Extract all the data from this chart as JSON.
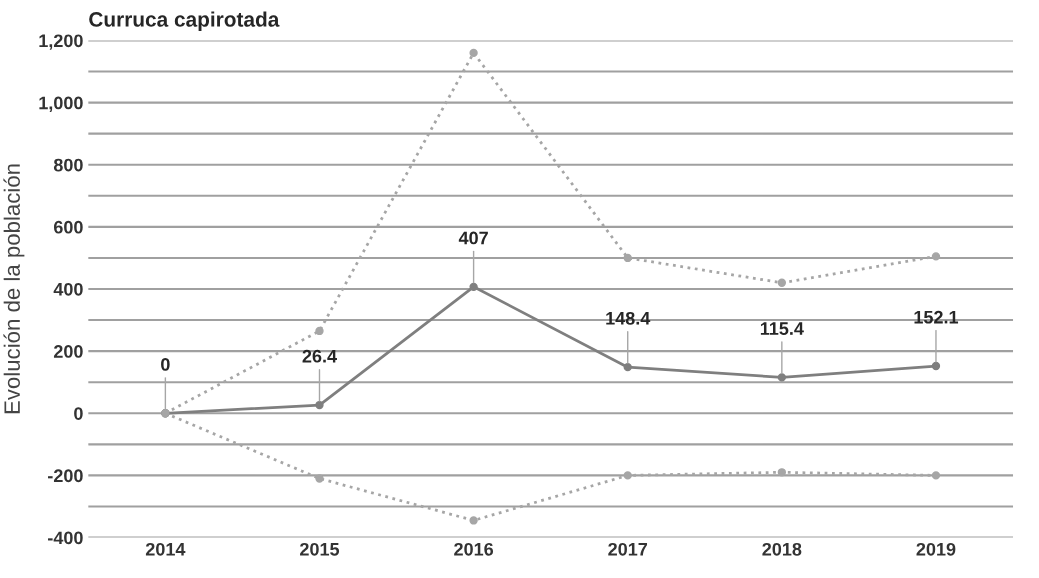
{
  "chart_data": {
    "type": "line",
    "title": "Curruca capirotada",
    "ylabel": "Evolución de la población",
    "categories": [
      "2014",
      "2015",
      "2016",
      "2017",
      "2018",
      "2019"
    ],
    "series": [
      {
        "color": "#a6a6a6",
        "values": [
          0,
          265,
          1160,
          500,
          420,
          505
        ],
        "line_style": "dotted"
      },
      {
        "color": "#7f7f7f",
        "values": [
          0,
          26.4,
          407,
          148.4,
          115.4,
          152.1
        ],
        "line_style": "solid",
        "value_labels": [
          "0",
          "26.4",
          "407",
          "148.4",
          "115.4",
          "152.1"
        ]
      },
      {
        "color": "#a6a6a6",
        "values": [
          0,
          -210,
          -345,
          -200,
          -190,
          -200
        ],
        "line_style": "dotted"
      }
    ],
    "ylim": [
      -400,
      1200
    ],
    "yticks": [
      -400,
      {
        "value": -300,
        "label": null
      },
      -200,
      {
        "value": -100,
        "label": null
      },
      0,
      {
        "value": 100,
        "label": null
      },
      200,
      {
        "value": 300,
        "label": null
      },
      400,
      {
        "value": 500,
        "label": null
      },
      600,
      {
        "value": 700,
        "label": null
      },
      800,
      {
        "value": 900,
        "label": null
      },
      {
        "value": 1000,
        "label": "1,000"
      },
      {
        "value": 1100,
        "label": null
      },
      {
        "value": 1200,
        "label": "1,200"
      }
    ],
    "grid": "y",
    "marker": "circle",
    "legend": false
  }
}
